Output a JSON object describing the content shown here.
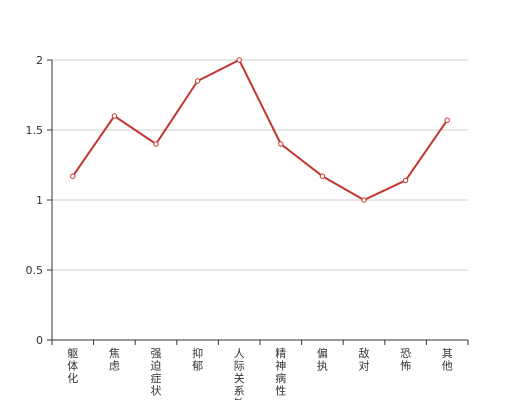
{
  "chart_data": {
    "type": "line",
    "categories": [
      "躯体化",
      "焦虑",
      "强迫症状",
      "抑郁",
      "人际关系敏感",
      "精神病性",
      "偏执",
      "敌对",
      "恐怖",
      "其他"
    ],
    "series": [
      {
        "values": [
          1.17,
          1.6,
          1.4,
          1.85,
          2.0,
          1.4,
          1.17,
          1.0,
          1.14,
          1.57
        ]
      }
    ],
    "ylim": [
      0,
      2
    ],
    "yticks": [
      "0",
      "0.5",
      "1",
      "1.5",
      "2"
    ],
    "grid": true,
    "colors": {
      "line": "#c23531",
      "grid": "#cccccc",
      "axis": "#333333"
    }
  }
}
